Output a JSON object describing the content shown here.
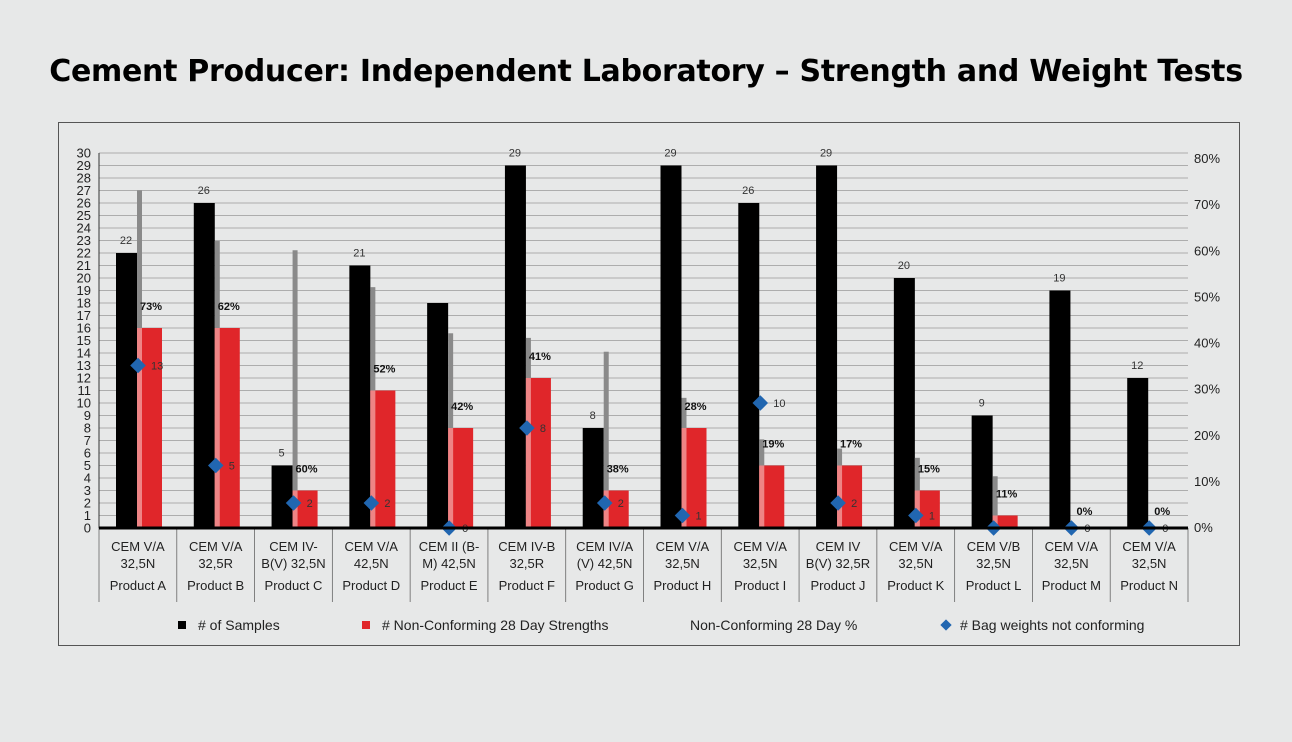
{
  "chart_data": {
    "type": "bar",
    "title": "Cement Producer: Independent Laboratory – Strength and Weight Tests",
    "products": [
      "Product A",
      "Product B",
      "Product C",
      "Product D",
      "Product E",
      "Product F",
      "Product G",
      "Product H",
      "Product I",
      "Product J",
      "Product K",
      "Product L",
      "Product M",
      "Product N"
    ],
    "cement_types": [
      "CEM V/A\n32,5N",
      "CEM V/A\n32,5R",
      "CEM IV-\nB(V) 32,5N",
      "CEM V/A\n42,5N",
      "CEM II (B-\nM) 42,5N",
      "CEM IV-B\n32,5R",
      "CEM IV/A\n(V) 42,5N",
      "CEM V/A\n32,5N",
      "CEM V/A\n32,5N",
      "CEM IV\nB(V) 32,5R",
      "CEM V/A\n32,5N",
      "CEM V/B\n32,5N",
      "CEM V/A\n32,5N",
      "CEM V/A\n32,5N"
    ],
    "series": [
      {
        "name": "# of Samples",
        "color": "#000000",
        "values": [
          22,
          26,
          5,
          21,
          18,
          29,
          8,
          29,
          26,
          29,
          20,
          9,
          19,
          12
        ],
        "labels": [
          "22",
          "26",
          "5",
          "21",
          "",
          "29",
          "8",
          "29",
          "26",
          "29",
          "20",
          "9",
          "19",
          "12"
        ]
      },
      {
        "name": "# Non-Conforming 28 Day Strengths",
        "color": "#e0262a",
        "values": [
          16,
          16,
          3,
          11,
          8,
          12,
          3,
          8,
          5,
          5,
          3,
          1,
          0,
          0
        ]
      },
      {
        "name": "Non-Conforming 28 Day %",
        "color": "#8a8a8a",
        "values": [
          73,
          62,
          60,
          52,
          42,
          41,
          38,
          28,
          19,
          17,
          15,
          11,
          0,
          0
        ],
        "labels": [
          "73%",
          "62%",
          "60%",
          "52%",
          "42%",
          "41%",
          "38%",
          "28%",
          "19%",
          "17%",
          "15%",
          "11%",
          "0%",
          "0%"
        ]
      },
      {
        "name": "# Bag weights not conforming",
        "color": "#2166b0",
        "values": [
          13,
          5,
          2,
          2,
          0,
          8,
          2,
          1,
          10,
          2,
          1,
          0,
          0,
          0
        ],
        "labels": [
          "13",
          "5",
          "2",
          "2",
          "0",
          "8",
          "2",
          "1",
          "10",
          "2",
          "1",
          "",
          "0",
          "0"
        ]
      }
    ],
    "y_left": {
      "min": 0,
      "max": 30,
      "step": 1
    },
    "y_right": {
      "min": 0,
      "max": 80,
      "ticks": [
        "0%",
        "10%",
        "20%",
        "30%",
        "40%",
        "50%",
        "60%",
        "70%",
        "80%"
      ]
    },
    "grid": true,
    "legend_position": "bottom"
  },
  "legend": {
    "samples": "# of Samples",
    "nonconf": "# Non-Conforming 28 Day Strengths",
    "pct": "Non-Conforming 28 Day %",
    "bags": "# Bag weights not conforming"
  },
  "colors": {
    "samples": "#000000",
    "nonconf": "#e0262a",
    "pct": "#8a8a8a",
    "bags": "#2166b0"
  }
}
